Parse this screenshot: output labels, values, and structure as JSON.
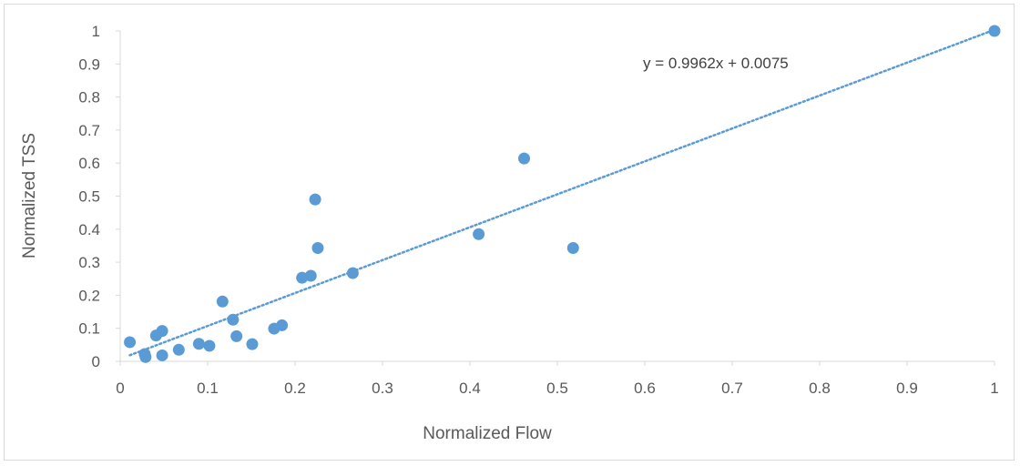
{
  "chart_data": {
    "type": "scatter",
    "title": "",
    "xlabel": "Normalized Flow",
    "ylabel": "Normalized TSS",
    "xlim": [
      0,
      1
    ],
    "ylim": [
      0,
      1
    ],
    "xticks": [
      "0",
      "0.1",
      "0.2",
      "0.3",
      "0.4",
      "0.5",
      "0.6",
      "0.7",
      "0.8",
      "0.9",
      "1"
    ],
    "yticks": [
      "0",
      "0.1",
      "0.2",
      "0.3",
      "0.4",
      "0.5",
      "0.6",
      "0.7",
      "0.8",
      "0.9",
      "1"
    ],
    "grid": false,
    "legend": "none",
    "marker_color": "#5b9bd5",
    "trendline": {
      "type": "linear",
      "slope": 0.9962,
      "intercept": 0.0075,
      "style": "dotted",
      "color": "#5b9bd5",
      "equation_label": "y = 0.9962x + 0.0075"
    },
    "points": [
      {
        "x": 0.011,
        "y": 0.058
      },
      {
        "x": 0.028,
        "y": 0.022
      },
      {
        "x": 0.029,
        "y": 0.013
      },
      {
        "x": 0.041,
        "y": 0.078
      },
      {
        "x": 0.048,
        "y": 0.092
      },
      {
        "x": 0.048,
        "y": 0.018
      },
      {
        "x": 0.067,
        "y": 0.035
      },
      {
        "x": 0.09,
        "y": 0.053
      },
      {
        "x": 0.102,
        "y": 0.047
      },
      {
        "x": 0.117,
        "y": 0.181
      },
      {
        "x": 0.129,
        "y": 0.126
      },
      {
        "x": 0.133,
        "y": 0.076
      },
      {
        "x": 0.151,
        "y": 0.052
      },
      {
        "x": 0.176,
        "y": 0.099
      },
      {
        "x": 0.185,
        "y": 0.109
      },
      {
        "x": 0.208,
        "y": 0.253
      },
      {
        "x": 0.218,
        "y": 0.259
      },
      {
        "x": 0.223,
        "y": 0.49
      },
      {
        "x": 0.226,
        "y": 0.343
      },
      {
        "x": 0.266,
        "y": 0.267
      },
      {
        "x": 0.41,
        "y": 0.385
      },
      {
        "x": 0.462,
        "y": 0.614
      },
      {
        "x": 0.518,
        "y": 0.343
      },
      {
        "x": 1.0,
        "y": 1.0
      }
    ]
  }
}
